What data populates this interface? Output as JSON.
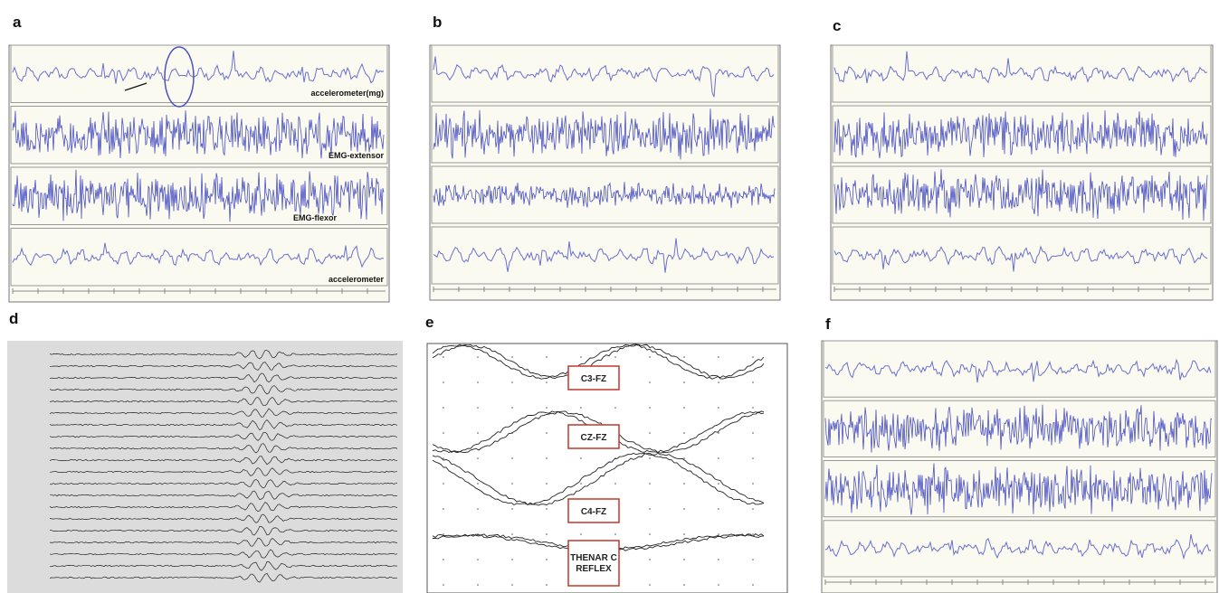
{
  "panels": [
    {
      "letter": "a",
      "labels": [
        "accelerometer(mg)",
        "EMG-extensor",
        "EMG-flexor",
        "accelerometer"
      ]
    },
    {
      "letter": "b"
    },
    {
      "letter": "c"
    },
    {
      "letter": "d"
    },
    {
      "letter": "e",
      "labels": [
        "C3-FZ",
        "CZ-FZ",
        "C4-FZ",
        "THENAR C REFLEX"
      ]
    },
    {
      "letter": "f"
    }
  ]
}
